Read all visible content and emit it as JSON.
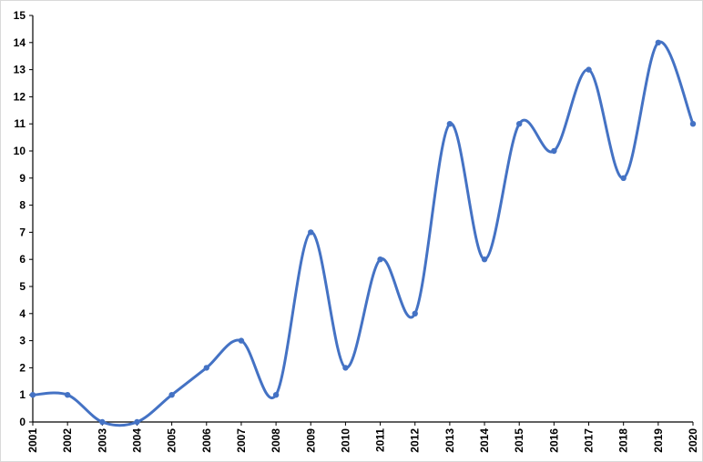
{
  "chart_data": {
    "type": "line",
    "title": "",
    "xlabel": "",
    "ylabel": "",
    "x": [
      "2001",
      "2002",
      "2003",
      "2004",
      "2005",
      "2006",
      "2007",
      "2008",
      "2009",
      "2010",
      "2011",
      "2012",
      "2013",
      "2014",
      "2015",
      "2016",
      "2017",
      "2018",
      "2019",
      "2020"
    ],
    "series": [
      {
        "values": [
          1,
          1,
          0,
          0,
          1,
          2,
          3,
          1,
          7,
          2,
          6,
          4,
          11,
          6,
          11,
          10,
          13,
          9,
          14,
          11
        ]
      }
    ],
    "ylim": [
      0,
      15
    ],
    "yticks": [
      "0",
      "1",
      "2",
      "3",
      "4",
      "5",
      "6",
      "7",
      "8",
      "9",
      "10",
      "11",
      "12",
      "13",
      "14",
      "15"
    ],
    "smooth": true,
    "markers": true,
    "grid": false,
    "legend": "none",
    "line_color": "#4472C4",
    "axis_color": "#000000"
  }
}
